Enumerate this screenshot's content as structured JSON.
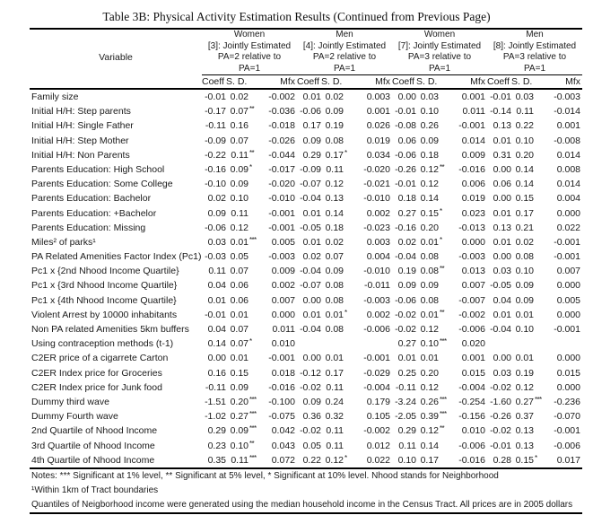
{
  "title": "Table 3B: Physical Activity Estimation Results (Continued from Previous Page)",
  "header": {
    "variable_label": "Variable",
    "col_labels": [
      "Coeff",
      "S. D.",
      "Mfx"
    ],
    "groups": [
      {
        "gender": "Women",
        "line2": "[3]: Jointly Estimated",
        "line3": "PA=2 relative to",
        "line4": "PA=1"
      },
      {
        "gender": "Men",
        "line2": "[4]: Jointly Estimated",
        "line3": "PA=2 relative to",
        "line4": "PA=1"
      },
      {
        "gender": "Women",
        "line2": "[7]: Jointly Estimated",
        "line3": "PA=3 relative to",
        "line4": "PA=1"
      },
      {
        "gender": "Men",
        "line2": "[8]: Jointly Estimated",
        "line3": "PA=3 relative to",
        "line4": "PA=1"
      }
    ]
  },
  "rows": [
    {
      "label": "Family size",
      "cells": [
        [
          "-0.01",
          "0.02",
          "",
          "-0.002"
        ],
        [
          "0.01",
          "0.02",
          "",
          "0.003"
        ],
        [
          "0.00",
          "0.03",
          "",
          "0.001"
        ],
        [
          "-0.01",
          "0.03",
          "",
          "-0.003"
        ]
      ]
    },
    {
      "label": "Initial H/H: Step parents",
      "cells": [
        [
          "-0.17",
          "0.07",
          "**",
          "-0.036"
        ],
        [
          "-0.06",
          "0.09",
          "",
          "0.001"
        ],
        [
          "-0.01",
          "0.10",
          "",
          "0.011"
        ],
        [
          "-0.14",
          "0.11",
          "",
          "-0.014"
        ]
      ]
    },
    {
      "label": "Initial H/H: Single Father",
      "cells": [
        [
          "-0.11",
          "0.16",
          "",
          "-0.018"
        ],
        [
          "0.17",
          "0.19",
          "",
          "0.026"
        ],
        [
          "-0.08",
          "0.26",
          "",
          "-0.001"
        ],
        [
          "0.13",
          "0.22",
          "",
          "0.001"
        ]
      ]
    },
    {
      "label": "Initial H/H: Step Mother",
      "cells": [
        [
          "-0.09",
          "0.07",
          "",
          "-0.026"
        ],
        [
          "0.09",
          "0.08",
          "",
          "0.019"
        ],
        [
          "0.06",
          "0.09",
          "",
          "0.014"
        ],
        [
          "0.01",
          "0.10",
          "",
          "-0.008"
        ]
      ]
    },
    {
      "label": "Initial H/H: Non Parents",
      "cells": [
        [
          "-0.22",
          "0.11",
          "**",
          "-0.044"
        ],
        [
          "0.29",
          "0.17",
          "*",
          "0.034"
        ],
        [
          "-0.06",
          "0.18",
          "",
          "0.009"
        ],
        [
          "0.31",
          "0.20",
          "",
          "0.014"
        ]
      ]
    },
    {
      "label": "Parents Education: High School",
      "cells": [
        [
          "-0.16",
          "0.09",
          "*",
          "-0.017"
        ],
        [
          "-0.09",
          "0.11",
          "",
          "-0.020"
        ],
        [
          "-0.26",
          "0.12",
          "**",
          "-0.016"
        ],
        [
          "0.00",
          "0.14",
          "",
          "0.008"
        ]
      ]
    },
    {
      "label": "Parents Education: Some College",
      "cells": [
        [
          "-0.10",
          "0.09",
          "",
          "-0.020"
        ],
        [
          "-0.07",
          "0.12",
          "",
          "-0.021"
        ],
        [
          "-0.01",
          "0.12",
          "",
          "0.006"
        ],
        [
          "0.06",
          "0.14",
          "",
          "0.014"
        ]
      ]
    },
    {
      "label": "Parents Education: Bachelor",
      "cells": [
        [
          "0.02",
          "0.10",
          "",
          "-0.010"
        ],
        [
          "-0.04",
          "0.13",
          "",
          "-0.010"
        ],
        [
          "0.18",
          "0.14",
          "",
          "0.019"
        ],
        [
          "0.00",
          "0.15",
          "",
          "0.004"
        ]
      ]
    },
    {
      "label": "Parents Education: +Bachelor",
      "cells": [
        [
          "0.09",
          "0.11",
          "",
          "-0.001"
        ],
        [
          "0.01",
          "0.14",
          "",
          "0.002"
        ],
        [
          "0.27",
          "0.15",
          "*",
          "0.023"
        ],
        [
          "0.01",
          "0.17",
          "",
          "0.000"
        ]
      ]
    },
    {
      "label": "Parents Education: Missing",
      "cells": [
        [
          "-0.06",
          "0.12",
          "",
          "-0.001"
        ],
        [
          "-0.05",
          "0.18",
          "",
          "-0.023"
        ],
        [
          "-0.16",
          "0.20",
          "",
          "-0.013"
        ],
        [
          "0.13",
          "0.21",
          "",
          "0.022"
        ]
      ]
    },
    {
      "label": "Miles² of parks¹",
      "cells": [
        [
          "0.03",
          "0.01",
          "***",
          "0.005"
        ],
        [
          "0.01",
          "0.02",
          "",
          "0.003"
        ],
        [
          "0.02",
          "0.01",
          "*",
          "0.000"
        ],
        [
          "0.01",
          "0.02",
          "",
          "-0.001"
        ]
      ]
    },
    {
      "label": "PA Related Amenities Factor Index (Pc1)",
      "cells": [
        [
          "-0.03",
          "0.05",
          "",
          "-0.003"
        ],
        [
          "0.02",
          "0.07",
          "",
          "0.004"
        ],
        [
          "-0.04",
          "0.08",
          "",
          "-0.003"
        ],
        [
          "0.00",
          "0.08",
          "",
          "-0.001"
        ]
      ]
    },
    {
      "label": "Pc1 x {2nd Nhood Income Quartile}",
      "cells": [
        [
          "0.11",
          "0.07",
          "",
          "0.009"
        ],
        [
          "-0.04",
          "0.09",
          "",
          "-0.010"
        ],
        [
          "0.19",
          "0.08",
          "**",
          "0.013"
        ],
        [
          "0.03",
          "0.10",
          "",
          "0.007"
        ]
      ]
    },
    {
      "label": "Pc1 x {3rd Nhood Income Quartile}",
      "cells": [
        [
          "0.04",
          "0.06",
          "",
          "0.002"
        ],
        [
          "-0.07",
          "0.08",
          "",
          "-0.011"
        ],
        [
          "0.09",
          "0.09",
          "",
          "0.007"
        ],
        [
          "-0.05",
          "0.09",
          "",
          "0.000"
        ]
      ]
    },
    {
      "label": "Pc1 x {4th Nhood Income Quartile}",
      "cells": [
        [
          "0.01",
          "0.06",
          "",
          "0.007"
        ],
        [
          "0.00",
          "0.08",
          "",
          "-0.003"
        ],
        [
          "-0.06",
          "0.08",
          "",
          "-0.007"
        ],
        [
          "0.04",
          "0.09",
          "",
          "0.005"
        ]
      ]
    },
    {
      "label": "Violent Arrest by 10000 inhabitants",
      "cells": [
        [
          "-0.01",
          "0.01",
          "",
          "0.000"
        ],
        [
          "0.01",
          "0.01",
          "*",
          "0.002"
        ],
        [
          "-0.02",
          "0.01",
          "**",
          "-0.002"
        ],
        [
          "0.01",
          "0.01",
          "",
          "0.000"
        ]
      ]
    },
    {
      "label": "Non PA related Amenities 5km buffers",
      "cells": [
        [
          "0.04",
          "0.07",
          "",
          "0.011"
        ],
        [
          "-0.04",
          "0.08",
          "",
          "-0.006"
        ],
        [
          "-0.02",
          "0.12",
          "",
          "-0.006"
        ],
        [
          "-0.04",
          "0.10",
          "",
          "-0.001"
        ]
      ]
    },
    {
      "label": "Using contraception methods (t-1)",
      "cells": [
        [
          "0.14",
          "0.07",
          "*",
          "0.010"
        ],
        [
          "",
          "",
          "",
          ""
        ],
        [
          "0.27",
          "0.10",
          "***",
          "0.020"
        ],
        [
          "",
          "",
          "",
          ""
        ]
      ]
    },
    {
      "label": "C2ER price of a cigarrete Carton",
      "cells": [
        [
          "0.00",
          "0.01",
          "",
          "-0.001"
        ],
        [
          "0.00",
          "0.01",
          "",
          "-0.001"
        ],
        [
          "0.01",
          "0.01",
          "",
          "0.001"
        ],
        [
          "0.00",
          "0.01",
          "",
          "0.000"
        ]
      ]
    },
    {
      "label": "C2ER Index price for Groceries",
      "cells": [
        [
          "0.16",
          "0.15",
          "",
          "0.018"
        ],
        [
          "-0.12",
          "0.17",
          "",
          "-0.029"
        ],
        [
          "0.25",
          "0.20",
          "",
          "0.015"
        ],
        [
          "0.03",
          "0.19",
          "",
          "0.015"
        ]
      ]
    },
    {
      "label": "C2ER Index price for Junk food",
      "cells": [
        [
          "-0.11",
          "0.09",
          "",
          "-0.016"
        ],
        [
          "-0.02",
          "0.11",
          "",
          "-0.004"
        ],
        [
          "-0.11",
          "0.12",
          "",
          "-0.004"
        ],
        [
          "-0.02",
          "0.12",
          "",
          "0.000"
        ]
      ]
    },
    {
      "label": "Dummy third wave",
      "cells": [
        [
          "-1.51",
          "0.20",
          "***",
          "-0.100"
        ],
        [
          "0.09",
          "0.24",
          "",
          "0.179"
        ],
        [
          "-3.24",
          "0.26",
          "***",
          "-0.254"
        ],
        [
          "-1.60",
          "0.27",
          "***",
          "-0.236"
        ]
      ]
    },
    {
      "label": "Dummy Fourth wave",
      "cells": [
        [
          "-1.02",
          "0.27",
          "***",
          "-0.075"
        ],
        [
          "0.36",
          "0.32",
          "",
          "0.105"
        ],
        [
          "-2.05",
          "0.39",
          "***",
          "-0.156"
        ],
        [
          "-0.26",
          "0.37",
          "",
          "-0.070"
        ]
      ]
    },
    {
      "label": "2nd Quartile of Nhood Income",
      "cells": [
        [
          "0.29",
          "0.09",
          "***",
          "0.042"
        ],
        [
          "-0.02",
          "0.11",
          "",
          "-0.002"
        ],
        [
          "0.29",
          "0.12",
          "**",
          "0.010"
        ],
        [
          "-0.02",
          "0.13",
          "",
          "-0.001"
        ]
      ]
    },
    {
      "label": "3rd Quartile of Nhood Income",
      "cells": [
        [
          "0.23",
          "0.10",
          "**",
          "0.043"
        ],
        [
          "0.05",
          "0.11",
          "",
          "0.012"
        ],
        [
          "0.11",
          "0.14",
          "",
          "-0.006"
        ],
        [
          "-0.01",
          "0.13",
          "",
          "-0.006"
        ]
      ]
    },
    {
      "label": "4th Quartile of Nhood Income",
      "cells": [
        [
          "0.35",
          "0.11",
          "***",
          "0.072"
        ],
        [
          "0.22",
          "0.12",
          "*",
          "0.022"
        ],
        [
          "0.10",
          "0.17",
          "",
          "-0.016"
        ],
        [
          "0.28",
          "0.15",
          "*",
          "0.017"
        ]
      ]
    }
  ],
  "notes": [
    "Notes: *** Significant at 1% level, ** Significant at 5% level, * Significant at 10% level. Nhood stands for Neighborhood",
    "¹Within 1km of Tract boundaries",
    "Quantiles of Neigborhood income were generated using the median household income in the Census Tract. All prices are in 2005 dollars"
  ]
}
